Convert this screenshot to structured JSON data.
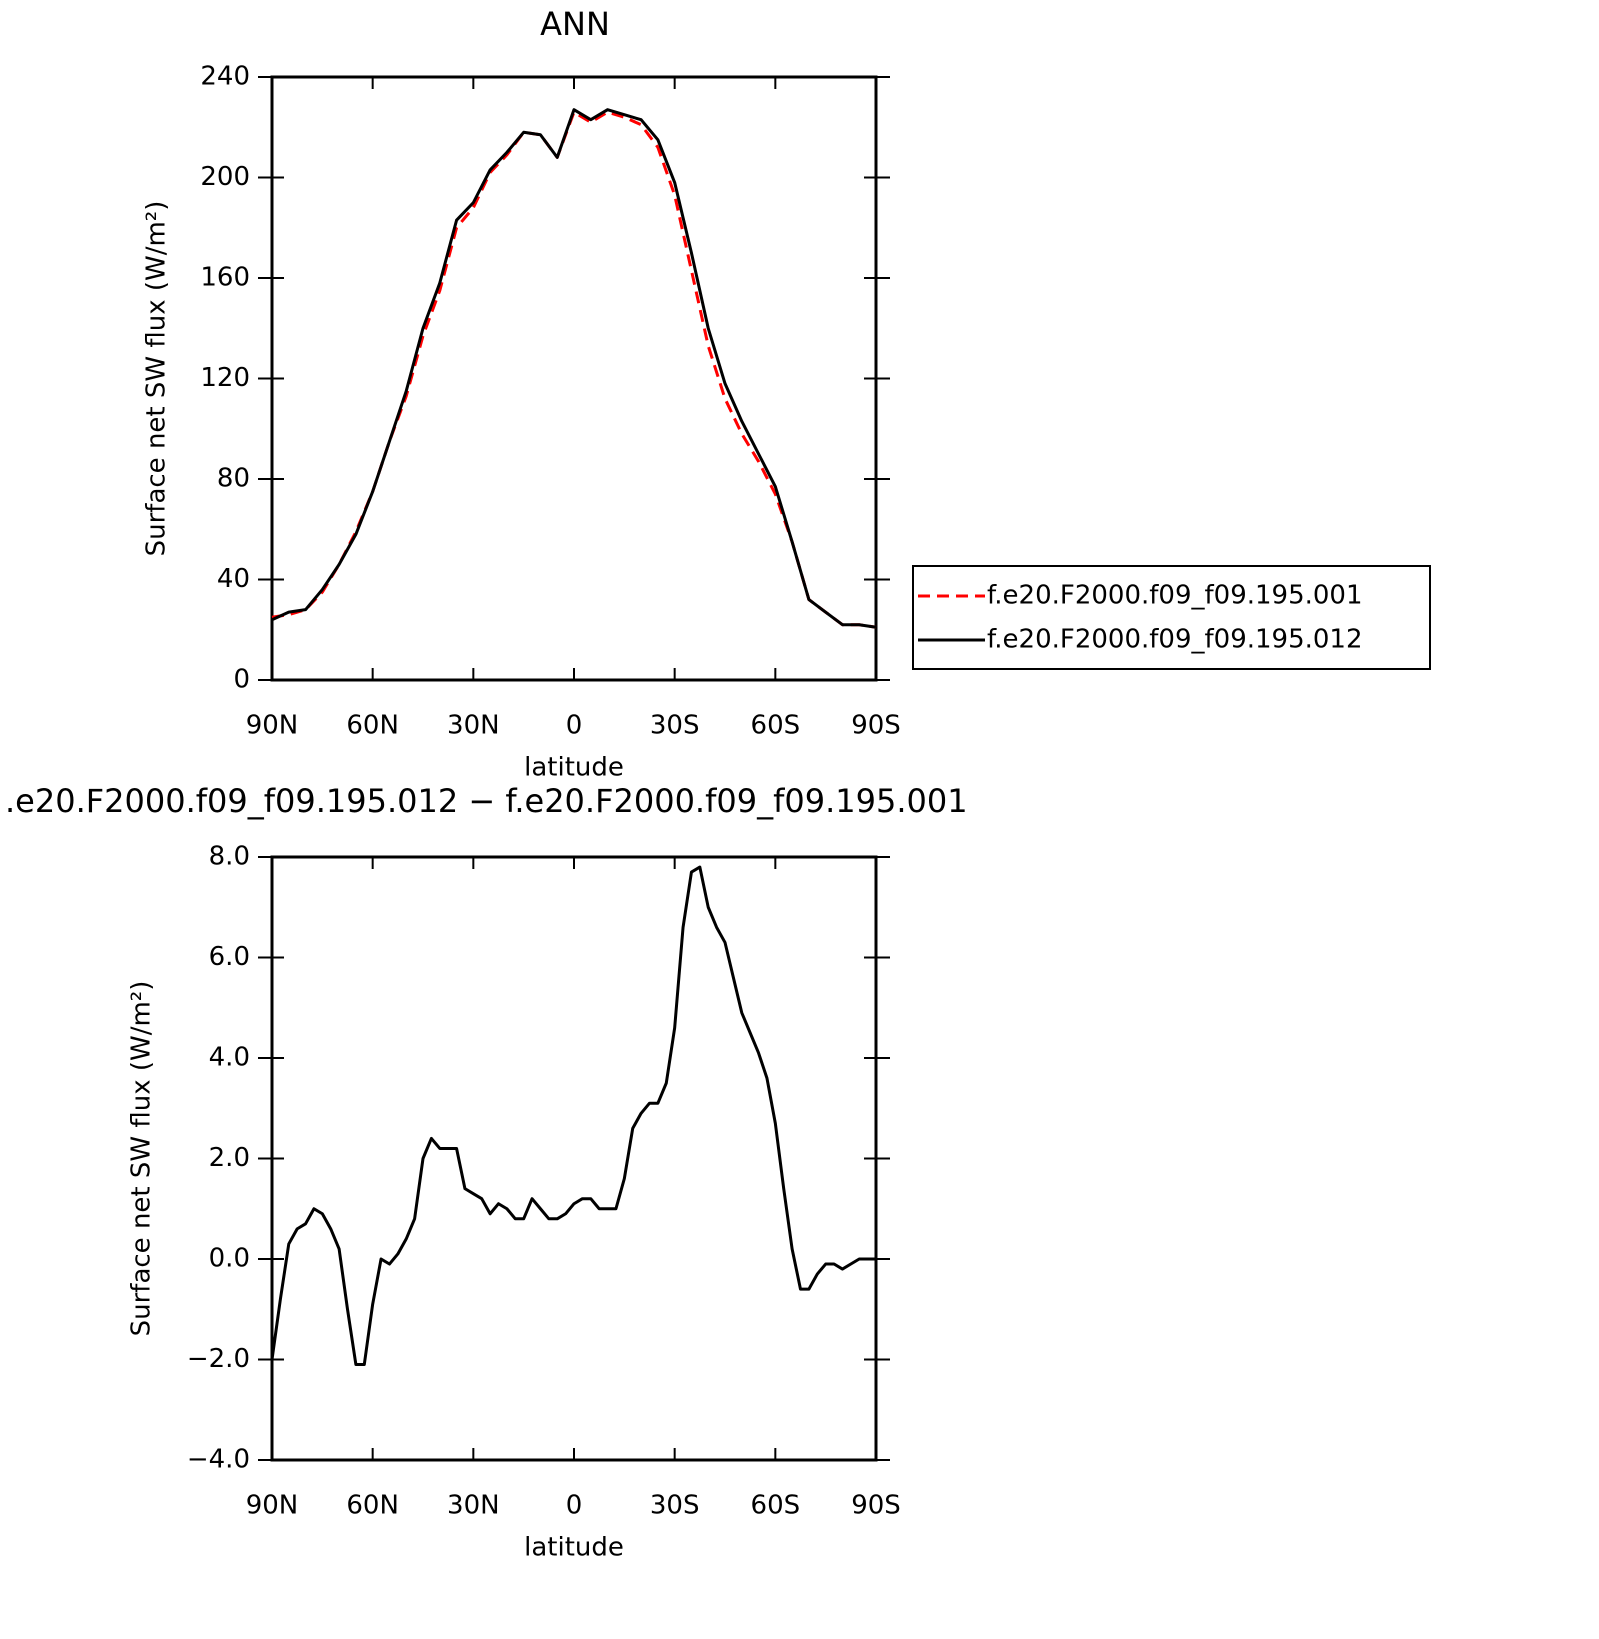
{
  "chart_data": [
    {
      "type": "line",
      "title": "ANN",
      "xlabel": "latitude",
      "ylabel": "Surface net SW flux (W/m²)",
      "x": [
        90,
        85,
        80,
        75,
        70,
        65,
        60,
        55,
        50,
        45,
        40,
        35,
        30,
        25,
        20,
        15,
        10,
        5,
        0,
        -5,
        -10,
        -15,
        -20,
        -25,
        -30,
        -35,
        -40,
        -45,
        -50,
        -55,
        -60,
        -65,
        -70,
        -75,
        -80,
        -85,
        -90
      ],
      "series": [
        {
          "name": "f.e20.F2000.f09_f09.195.001",
          "color": "#ff0000",
          "style": "dashed",
          "values": [
            25,
            26,
            28,
            35,
            46,
            59,
            75,
            95,
            113,
            137,
            155,
            180,
            188,
            202,
            209,
            218,
            217,
            208,
            226,
            222,
            226,
            224,
            221,
            212,
            193,
            163,
            133,
            112,
            98,
            87,
            74,
            55,
            32,
            27,
            22,
            22,
            21
          ]
        },
        {
          "name": "f.e20.F2000.f09_f09.195.012",
          "color": "#000000",
          "style": "solid",
          "values": [
            24,
            27,
            28,
            36,
            46,
            58,
            75,
            95,
            115,
            140,
            158,
            183,
            190,
            203,
            210,
            218,
            217,
            208,
            227,
            223,
            227,
            225,
            223,
            215,
            198,
            170,
            140,
            118,
            103,
            90,
            77,
            55,
            32,
            27,
            22,
            22,
            21
          ]
        }
      ],
      "xlim": [
        90,
        -90
      ],
      "xticks": [
        {
          "value": 90,
          "label": "90N"
        },
        {
          "value": 60,
          "label": "60N"
        },
        {
          "value": 30,
          "label": "30N"
        },
        0,
        {
          "value": -30,
          "label": "30S"
        },
        {
          "value": -60,
          "label": "60S"
        },
        {
          "value": -90,
          "label": "90S"
        }
      ],
      "ylim": [
        0,
        240
      ],
      "yticks": [
        0,
        40,
        80,
        120,
        160,
        200,
        240
      ],
      "legend": "outside-right"
    },
    {
      "type": "line",
      "title": ".e20.F2000.f09_f09.195.012 − f.e20.F2000.f09_f09.195.001",
      "xlabel": "latitude",
      "ylabel": "Surface net SW flux (W/m²)",
      "x": [
        90,
        87.5,
        85,
        82.5,
        80,
        77.5,
        75,
        72.5,
        70,
        67.5,
        65,
        62.5,
        60,
        57.5,
        55,
        52.5,
        50,
        47.5,
        45,
        42.5,
        40,
        37.5,
        35,
        32.5,
        30,
        27.5,
        25,
        22.5,
        20,
        17.5,
        15,
        12.5,
        10,
        7.5,
        5,
        2.5,
        0,
        -2.5,
        -5,
        -7.5,
        -10,
        -12.5,
        -15,
        -17.5,
        -20,
        -22.5,
        -25,
        -27.5,
        -30,
        -32.5,
        -35,
        -37.5,
        -40,
        -42.5,
        -45,
        -47.5,
        -50,
        -52.5,
        -55,
        -57.5,
        -60,
        -62.5,
        -65,
        -67.5,
        -70,
        -72.5,
        -75,
        -77.5,
        -80,
        -82.5,
        -85,
        -87.5,
        -90
      ],
      "color": "#000000",
      "values": [
        -2.0,
        -0.8,
        0.3,
        0.6,
        0.7,
        1.0,
        0.9,
        0.6,
        0.2,
        -1.0,
        -2.1,
        -2.1,
        -0.9,
        0.0,
        -0.1,
        0.1,
        0.4,
        0.8,
        2.0,
        2.4,
        2.2,
        2.2,
        2.2,
        1.4,
        1.3,
        1.2,
        0.9,
        1.1,
        1.0,
        0.8,
        0.8,
        1.2,
        1.0,
        0.8,
        0.8,
        0.9,
        1.1,
        1.2,
        1.2,
        1.0,
        1.0,
        1.0,
        1.6,
        2.6,
        2.9,
        3.1,
        3.1,
        3.5,
        4.6,
        6.6,
        7.7,
        7.8,
        7.0,
        6.6,
        6.3,
        5.6,
        4.9,
        4.5,
        4.1,
        3.6,
        2.7,
        1.4,
        0.2,
        -0.6,
        -0.6,
        -0.3,
        -0.1,
        -0.1,
        -0.2,
        -0.1,
        0.0,
        0.0,
        0.0
      ],
      "xlim": [
        90,
        -90
      ],
      "xticks": [
        {
          "value": 90,
          "label": "90N"
        },
        {
          "value": 60,
          "label": "60N"
        },
        {
          "value": 30,
          "label": "30N"
        },
        0,
        {
          "value": -30,
          "label": "30S"
        },
        {
          "value": -60,
          "label": "60S"
        },
        {
          "value": -90,
          "label": "90S"
        }
      ],
      "ylim": [
        -4,
        8
      ],
      "yticks": [
        {
          "value": -4,
          "label": "−4.0"
        },
        {
          "value": -2,
          "label": "−2.0"
        },
        {
          "value": 0,
          "label": "0.0"
        },
        {
          "value": 2,
          "label": "2.0"
        },
        {
          "value": 4,
          "label": "4.0"
        },
        {
          "value": 6,
          "label": "6.0"
        },
        {
          "value": 8,
          "label": "8.0"
        }
      ]
    }
  ]
}
